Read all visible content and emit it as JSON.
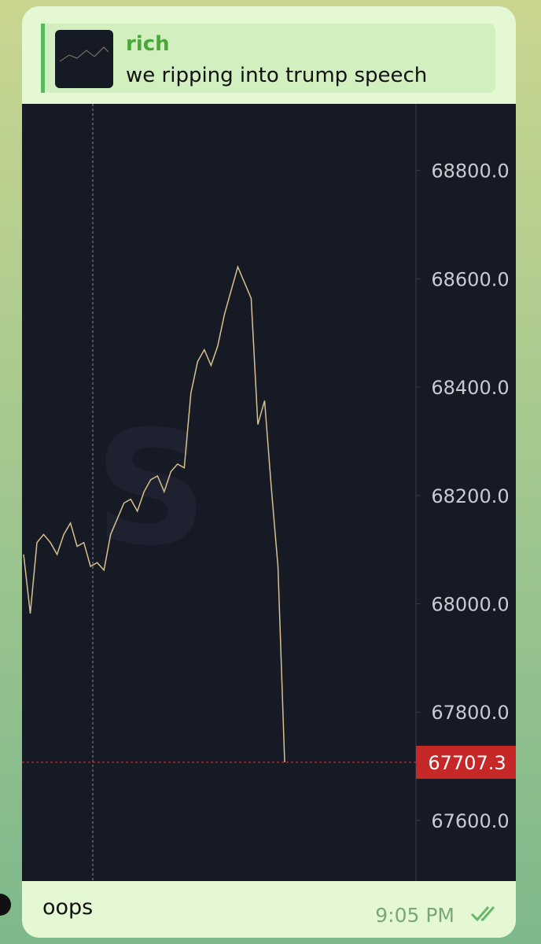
{
  "reply": {
    "author": "rich",
    "text": "we ripping into trump speech"
  },
  "chart_data": {
    "type": "line",
    "values": [
      68091,
      67982,
      68113,
      68128,
      68113,
      68091,
      68128,
      68149,
      68106,
      68113,
      68069,
      68076,
      68062,
      68128,
      68157,
      68186,
      68193,
      68171,
      68207,
      68229,
      68236,
      68207,
      68244,
      68258,
      68251,
      68389,
      68447,
      68469,
      68440,
      68476,
      68534,
      68578,
      68622,
      68593,
      68564,
      68331,
      68375,
      68215,
      68069,
      67707.3
    ],
    "color": "#d8c08e",
    "ylim": [
      67488,
      68923
    ],
    "yticks": [
      {
        "value": 67600,
        "label": "67600.0"
      },
      {
        "value": 67800,
        "label": "67800.0"
      },
      {
        "value": 68000,
        "label": "68000.0"
      },
      {
        "value": 68200,
        "label": "68200.0"
      },
      {
        "value": 68400,
        "label": "68400.0"
      },
      {
        "value": 68600,
        "label": "68600.0"
      },
      {
        "value": 68800,
        "label": "68800.0"
      }
    ],
    "last_price": 67707.3
  },
  "message": {
    "text": "oops",
    "time": "9:05 PM"
  }
}
